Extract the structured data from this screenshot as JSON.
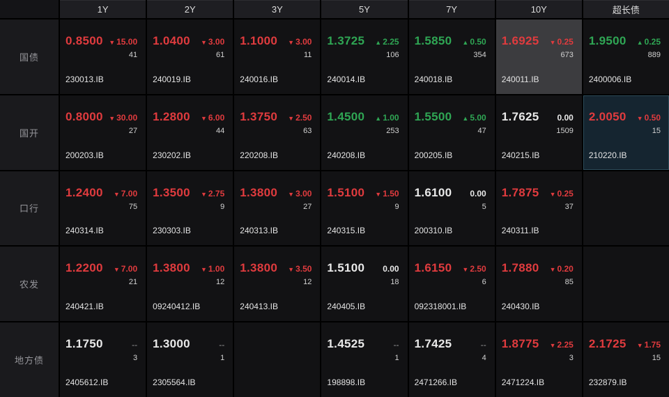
{
  "colors": {
    "up": "#2fa654",
    "down": "#e03b3e",
    "flat": "#e9e9e9"
  },
  "glyphs": {
    "down_arrow": "▼",
    "up_arrow": "▲"
  },
  "header": {
    "columns": [
      "1Y",
      "2Y",
      "3Y",
      "5Y",
      "7Y",
      "10Y",
      "超长债"
    ]
  },
  "rows": [
    {
      "label": "国债",
      "cells": [
        {
          "yield": "0.8500",
          "dir": "down",
          "change": "15.00",
          "volume": "41",
          "code": "230013.IB"
        },
        {
          "yield": "1.0400",
          "dir": "down",
          "change": "3.00",
          "volume": "61",
          "code": "240019.IB"
        },
        {
          "yield": "1.1000",
          "dir": "down",
          "change": "3.00",
          "volume": "11",
          "code": "240016.IB"
        },
        {
          "yield": "1.3725",
          "dir": "up",
          "change": "2.25",
          "volume": "106",
          "code": "240014.IB"
        },
        {
          "yield": "1.5850",
          "dir": "up",
          "change": "0.50",
          "volume": "354",
          "code": "240018.IB"
        },
        {
          "yield": "1.6925",
          "dir": "down",
          "change": "0.25",
          "volume": "673",
          "code": "240011.IB",
          "highlight": "grey"
        },
        {
          "yield": "1.9500",
          "dir": "up",
          "change": "0.25",
          "volume": "889",
          "code": "2400006.IB"
        }
      ]
    },
    {
      "label": "国开",
      "cells": [
        {
          "yield": "0.8000",
          "dir": "down",
          "change": "30.00",
          "volume": "27",
          "code": "200203.IB"
        },
        {
          "yield": "1.2800",
          "dir": "down",
          "change": "6.00",
          "volume": "44",
          "code": "230202.IB"
        },
        {
          "yield": "1.3750",
          "dir": "down",
          "change": "2.50",
          "volume": "63",
          "code": "220208.IB"
        },
        {
          "yield": "1.4500",
          "dir": "up",
          "change": "1.00",
          "volume": "253",
          "code": "240208.IB"
        },
        {
          "yield": "1.5500",
          "dir": "up",
          "change": "5.00",
          "volume": "47",
          "code": "200205.IB"
        },
        {
          "yield": "1.7625",
          "dir": "flat",
          "change": "0.00",
          "volume": "1509",
          "code": "240215.IB"
        },
        {
          "yield": "2.0050",
          "dir": "down",
          "change": "0.50",
          "volume": "15",
          "code": "210220.IB",
          "highlight": "blue"
        }
      ]
    },
    {
      "label": "口行",
      "cells": [
        {
          "yield": "1.2400",
          "dir": "down",
          "change": "7.00",
          "volume": "75",
          "code": "240314.IB"
        },
        {
          "yield": "1.3500",
          "dir": "down",
          "change": "2.75",
          "volume": "9",
          "code": "230303.IB"
        },
        {
          "yield": "1.3800",
          "dir": "down",
          "change": "3.00",
          "volume": "27",
          "code": "240313.IB"
        },
        {
          "yield": "1.5100",
          "dir": "down",
          "change": "1.50",
          "volume": "9",
          "code": "240315.IB"
        },
        {
          "yield": "1.6100",
          "dir": "flat",
          "change": "0.00",
          "volume": "5",
          "code": "200310.IB"
        },
        {
          "yield": "1.7875",
          "dir": "down",
          "change": "0.25",
          "volume": "37",
          "code": "240311.IB"
        },
        null
      ]
    },
    {
      "label": "农发",
      "cells": [
        {
          "yield": "1.2200",
          "dir": "down",
          "change": "7.00",
          "volume": "21",
          "code": "240421.IB"
        },
        {
          "yield": "1.3800",
          "dir": "down",
          "change": "1.00",
          "volume": "12",
          "code": "09240412.IB"
        },
        {
          "yield": "1.3800",
          "dir": "down",
          "change": "3.50",
          "volume": "12",
          "code": "240413.IB"
        },
        {
          "yield": "1.5100",
          "dir": "flat",
          "change": "0.00",
          "volume": "18",
          "code": "240405.IB"
        },
        {
          "yield": "1.6150",
          "dir": "down",
          "change": "2.50",
          "volume": "6",
          "code": "092318001.IB"
        },
        {
          "yield": "1.7880",
          "dir": "down",
          "change": "0.20",
          "volume": "85",
          "code": "240430.IB"
        },
        null
      ]
    },
    {
      "label": "地方债",
      "cells": [
        {
          "yield": "1.1750",
          "dir": "none",
          "change": "--",
          "volume": "3",
          "code": "2405612.IB"
        },
        {
          "yield": "1.3000",
          "dir": "none",
          "change": "--",
          "volume": "1",
          "code": "2305564.IB"
        },
        null,
        {
          "yield": "1.4525",
          "dir": "none",
          "change": "--",
          "volume": "1",
          "code": "198898.IB"
        },
        {
          "yield": "1.7425",
          "dir": "none",
          "change": "--",
          "volume": "4",
          "code": "2471266.IB"
        },
        {
          "yield": "1.8775",
          "dir": "down",
          "change": "2.25",
          "volume": "3",
          "code": "2471224.IB"
        },
        {
          "yield": "2.1725",
          "dir": "down",
          "change": "1.75",
          "volume": "15",
          "code": "232879.IB"
        }
      ]
    }
  ]
}
